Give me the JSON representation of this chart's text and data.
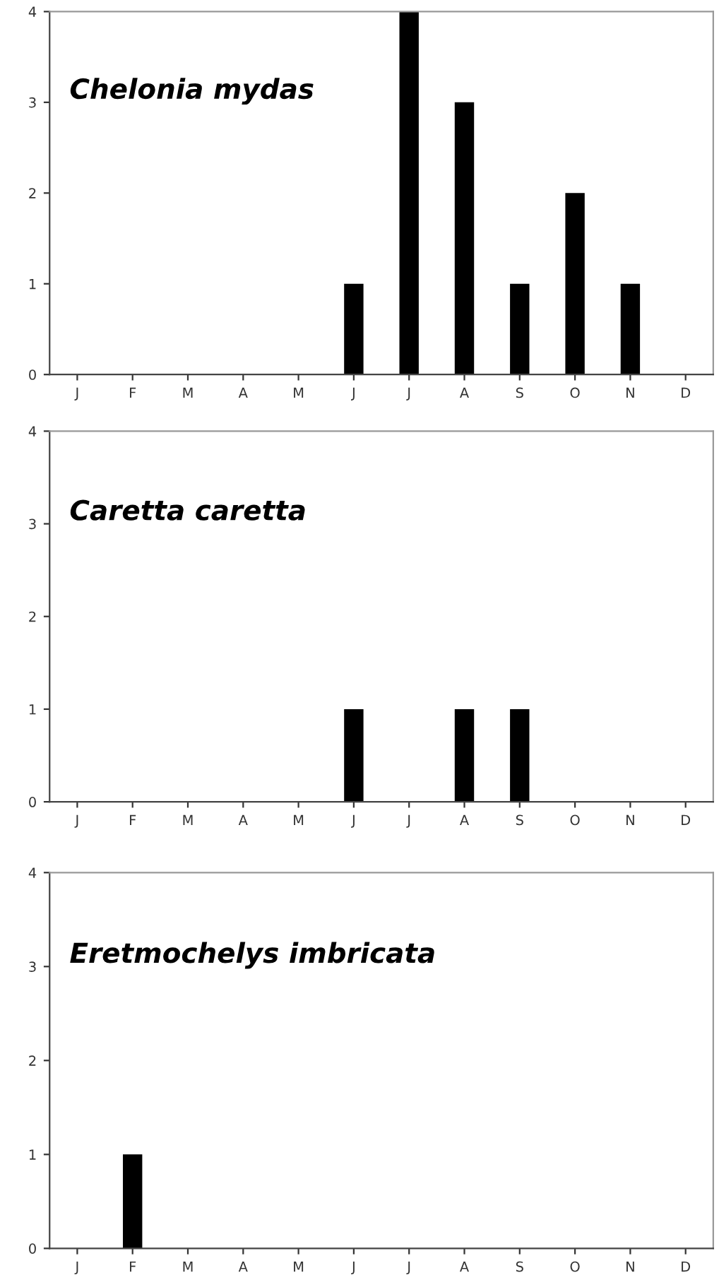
{
  "chart_data": [
    {
      "type": "bar",
      "title": "Chelonia mydas",
      "categories": [
        "J",
        "F",
        "M",
        "A",
        "M",
        "J",
        "J",
        "A",
        "S",
        "O",
        "N",
        "D"
      ],
      "values": [
        0,
        0,
        0,
        0,
        0,
        1,
        4,
        3,
        1,
        2,
        1,
        0
      ],
      "color": "#000000",
      "ylim": [
        0,
        4
      ],
      "yticks": [
        0,
        1,
        2,
        3,
        4
      ],
      "grid": false,
      "legend": false
    },
    {
      "type": "bar",
      "title": "Caretta caretta",
      "categories": [
        "J",
        "F",
        "M",
        "A",
        "M",
        "J",
        "J",
        "A",
        "S",
        "O",
        "N",
        "D"
      ],
      "values": [
        0,
        0,
        0,
        0,
        0,
        1,
        0,
        1,
        1,
        0,
        0,
        0
      ],
      "color": "#000000",
      "ylim": [
        0,
        4
      ],
      "yticks": [
        0,
        1,
        2,
        3,
        4
      ],
      "grid": false,
      "legend": false
    },
    {
      "type": "bar",
      "title": "Eretmochelys imbricata",
      "categories": [
        "J",
        "F",
        "M",
        "A",
        "M",
        "J",
        "J",
        "A",
        "S",
        "O",
        "N",
        "D"
      ],
      "values": [
        0,
        1,
        0,
        0,
        0,
        0,
        0,
        0,
        0,
        0,
        0,
        0
      ],
      "color": "#000000",
      "ylim": [
        0,
        4
      ],
      "yticks": [
        0,
        1,
        2,
        3,
        4
      ],
      "grid": false,
      "legend": false
    }
  ]
}
